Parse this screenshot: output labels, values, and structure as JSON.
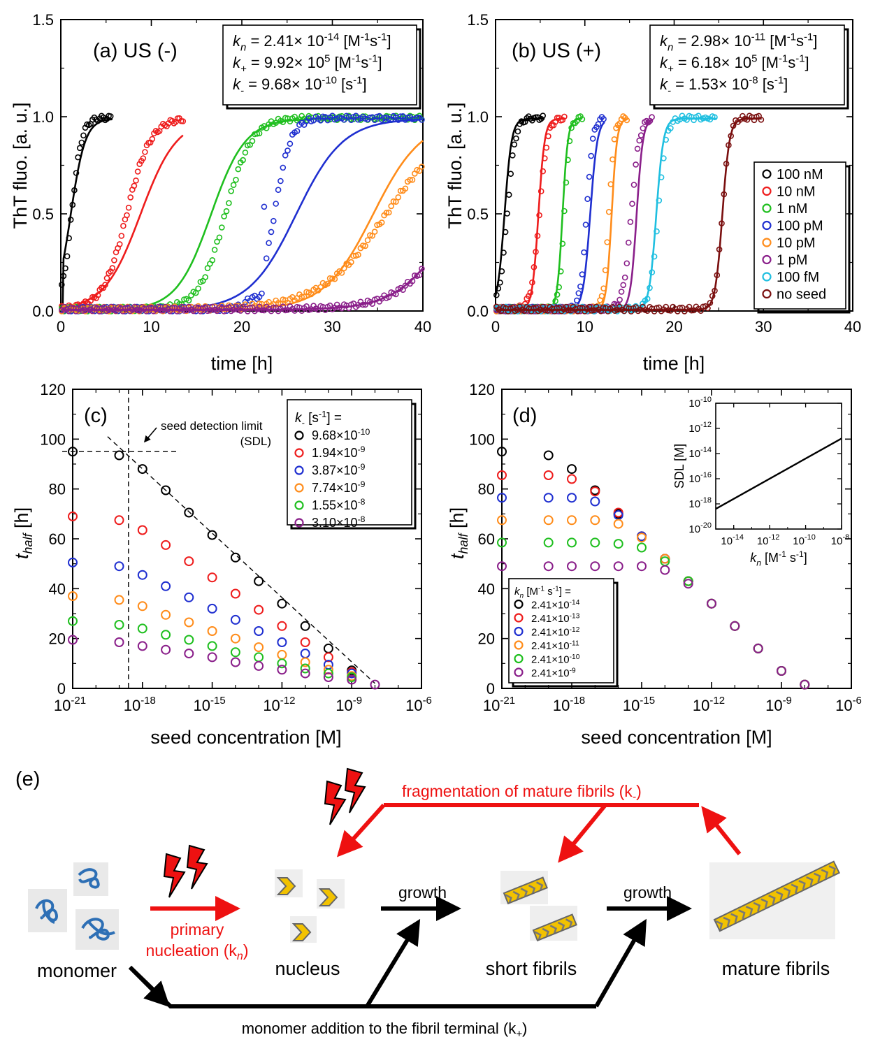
{
  "colors": {
    "c100nM": "#000000",
    "c10nM": "#ee1c1c",
    "c1nM": "#1fbf1f",
    "c100pM": "#1f2fd0",
    "c10pM": "#ff8c1a",
    "c1pM": "#8a1f8a",
    "c100fM": "#1fbfe0",
    "noseed": "#7a0f0f",
    "red": "#ee1111",
    "black": "#000000"
  },
  "chart_data": [
    {
      "panel": "(a) US (-)",
      "type": "line",
      "xlabel": "time [h]",
      "ylabel": "ThT fluo. [a. u.]",
      "xlim": [
        0,
        40
      ],
      "ylim": [
        0,
        1.5
      ],
      "xticks": [
        "0",
        "10",
        "20",
        "30",
        "40"
      ],
      "yticks": [
        "0.0",
        "0.5",
        "1.0",
        "1.5"
      ],
      "params": [
        "k_n = 2.41× 10^-14 [M^-1s^-1]",
        "k_+ = 9.92× 10^5 [M^-1s^-1]",
        "k_- = 9.68× 10^-10 [s^-1]"
      ],
      "series": [
        {
          "color": "c100nM",
          "t50_data": 1.2,
          "t50_fit": 1.1,
          "tend": 5.7,
          "lag_fit": 0.25
        },
        {
          "color": "c10nM",
          "t50_data": 7.3,
          "t50_fit": 8.8,
          "tend": 13.5
        },
        {
          "color": "c1nM",
          "t50_data": 18.2,
          "t50_fit": 16.6,
          "tend": 40
        },
        {
          "color": "c100pM",
          "t50_data": 23.6,
          "t50_fit": 26.0,
          "tend": 40,
          "jump": [
            20.4,
            22.3
          ]
        },
        {
          "color": "c10pM",
          "t50_data": 36.0,
          "t50_fit": 34.5,
          "tend": 40
        },
        {
          "color": "c1pM",
          "t50_data": 44.0,
          "t50_fit": 43.8,
          "tend": 40
        }
      ]
    },
    {
      "panel": "(b) US (+)",
      "type": "line",
      "xlabel": "time [h]",
      "ylabel": "ThT fluo. [a. u.]",
      "xlim": [
        0,
        40
      ],
      "ylim": [
        0,
        1.5
      ],
      "xticks": [
        "0",
        "10",
        "20",
        "30",
        "40"
      ],
      "yticks": [
        "0.0",
        "0.5",
        "1.0",
        "1.5"
      ],
      "params": [
        "k_n = 2.98× 10^-11 [M^-1s^-1]",
        "k_+ = 6.18× 10^5 [M^-1s^-1]",
        "k_- = 1.53× 10^-8 [s^-1]"
      ],
      "legend": [
        "100 nM",
        "10 nM",
        "1 nM",
        "100 pM",
        "10 pM",
        "1 pM",
        "100 fM",
        "no seed"
      ],
      "series": [
        {
          "name": "100 nM",
          "color": "c100nM",
          "t50_data": 1.3,
          "t50_fit": 1.0,
          "tend": 5.5
        },
        {
          "name": "10 nM",
          "color": "c10nM",
          "t50_data": 4.9,
          "t50_fit": 4.8,
          "tend": 7.8
        },
        {
          "name": "1 nM",
          "color": "c1nM",
          "t50_data": 7.7,
          "t50_fit": 7.5,
          "tend": 9.7
        },
        {
          "name": "100 pM",
          "color": "c100pM",
          "t50_data": 10.2,
          "t50_fit": 10.6,
          "tend": 12.2
        },
        {
          "name": "10 pM",
          "color": "c10pM",
          "t50_data": 12.7,
          "t50_fit": 13.0,
          "tend": 14.8
        },
        {
          "name": "1 pM",
          "color": "c1pM",
          "t50_data": 15.2,
          "t50_fit": 15.8,
          "tend": 17.6
        },
        {
          "name": "100 fM",
          "color": "c100fM",
          "t50_data": 18.2,
          "t50_fit": 18.0,
          "tend": 24.8
        },
        {
          "name": "no seed",
          "color": "noseed",
          "t50_data": 25.4,
          "t50_fit": 25.4,
          "tend": 29.8
        }
      ]
    },
    {
      "panel": "(c)",
      "type": "scatter",
      "xlabel": "seed concentration [M]",
      "ylabel_main": "t",
      "ylabel_sub": "half",
      "ylabel_unit": " [h]",
      "xscale": "log",
      "xlim_exp": [
        -21,
        -6
      ],
      "ylim": [
        0,
        120
      ],
      "xticks": [
        -21,
        -18,
        -15,
        -12,
        -9,
        -6
      ],
      "yticks": [
        "0",
        "20",
        "40",
        "60",
        "80",
        "100",
        "120"
      ],
      "legend_title": "k_- [s^-1] =",
      "annotation": [
        "seed detection limit",
        "(SDL)"
      ],
      "x_exp": [
        -21,
        -19,
        -18,
        -17,
        -16,
        -15,
        -14,
        -13,
        -12,
        -11,
        -10,
        -9,
        -8
      ],
      "series": [
        {
          "name": "9.68×10^-10",
          "color": "c100nM",
          "values": [
            95,
            93.5,
            88,
            79.5,
            70.5,
            61.5,
            52.5,
            43,
            34,
            25,
            16,
            7.2,
            null
          ]
        },
        {
          "name": "1.94×10^-9",
          "color": "c10nM",
          "values": [
            69,
            67.5,
            63.5,
            57.5,
            51,
            44.5,
            38,
            31.5,
            25,
            18.5,
            12.5,
            6.5,
            null
          ]
        },
        {
          "name": "3.87×10^-9",
          "color": "c100pM",
          "values": [
            50.5,
            49,
            45.5,
            41,
            36.5,
            32,
            27.5,
            23,
            18.5,
            14,
            9.5,
            6,
            null
          ]
        },
        {
          "name": "7.74×10^-9",
          "color": "c10pM",
          "values": [
            37,
            35.5,
            33,
            29.5,
            26.5,
            23,
            20,
            16.5,
            13.5,
            10.5,
            7.5,
            5,
            null
          ]
        },
        {
          "name": "1.55×10^-8",
          "color": "c1nM",
          "values": [
            27,
            25.5,
            24,
            21.5,
            19.5,
            17,
            14.5,
            12.5,
            10,
            8,
            6,
            4.5,
            null
          ]
        },
        {
          "name": "3.10×10^-8",
          "color": "c1pM",
          "values": [
            19.5,
            18.5,
            17,
            15.5,
            14,
            12.5,
            10.5,
            9,
            7.5,
            6,
            4.5,
            3.5,
            1.5
          ]
        }
      ]
    },
    {
      "panel": "(d)",
      "type": "scatter",
      "xlabel": "seed concentration [M]",
      "ylabel_main": "t",
      "ylabel_sub": "half",
      "ylabel_unit": " [h]",
      "xscale": "log",
      "xlim_exp": [
        -21,
        -6
      ],
      "ylim": [
        0,
        120
      ],
      "xticks": [
        -21,
        -18,
        -15,
        -12,
        -9,
        -6
      ],
      "yticks": [
        "0",
        "20",
        "40",
        "60",
        "80",
        "100",
        "120"
      ],
      "legend_title": "k_n [M^-1 s^-1] =",
      "x_exp": [
        -21,
        -19,
        -18,
        -17,
        -16,
        -15,
        -14,
        -13,
        -12,
        -11,
        -10,
        -9,
        -8
      ],
      "series": [
        {
          "name": "2.41×10^-14",
          "color": "c100nM",
          "values": [
            95,
            93.5,
            88,
            79.5,
            70,
            61,
            52,
            43,
            34,
            25,
            16,
            7,
            1.5
          ]
        },
        {
          "name": "2.41×10^-13",
          "color": "c10nM",
          "values": [
            85.5,
            85.5,
            84,
            79,
            70.5,
            61,
            52,
            43,
            34,
            25,
            16,
            7,
            1.5
          ]
        },
        {
          "name": "2.41×10^-12",
          "color": "c100pM",
          "values": [
            76.5,
            76.5,
            76.5,
            75,
            69.5,
            61,
            52,
            43,
            34,
            25,
            16,
            7,
            1.5
          ]
        },
        {
          "name": "2.41×10^-11",
          "color": "c10pM",
          "values": [
            67.5,
            67.5,
            67.5,
            67.5,
            66,
            60.5,
            52,
            43,
            34,
            25,
            16,
            7,
            1.5
          ]
        },
        {
          "name": "2.41×10^-10",
          "color": "c1nM",
          "values": [
            58.5,
            58.5,
            58.5,
            58.5,
            58,
            56.5,
            51,
            43,
            34,
            25,
            16,
            7,
            1.5
          ]
        },
        {
          "name": "2.41×10^-9",
          "color": "c1pM",
          "values": [
            49,
            49,
            49,
            49,
            49,
            49,
            47.5,
            42,
            34,
            25,
            16,
            7,
            1.5
          ]
        }
      ],
      "inset": {
        "type": "line",
        "xlabel": "k_n [M^-1 s^-1]",
        "ylabel": "SDL [M]",
        "xscale": "log",
        "yscale": "log",
        "xlim_exp": [
          -15,
          -8
        ],
        "ylim_exp": [
          -20,
          -10
        ],
        "xticks": [
          -14,
          -12,
          -10,
          -8
        ],
        "yticks": [
          -20,
          -18,
          -16,
          -14,
          -12,
          -10
        ],
        "line": [
          [
            -15,
            -18.4
          ],
          [
            -8,
            -12.8
          ]
        ]
      }
    }
  ],
  "schematic": {
    "label": "(e)",
    "fragmentation": "fragmentation of mature fibrils (k",
    "fragmentation_sub": "-",
    "primary_1": "primary",
    "primary_2": "nucleation (k",
    "primary_sub": "n",
    "growth_1": "growth",
    "growth_2": "growth",
    "monomer": "monomer",
    "nucleus": "nucleus",
    "short": "short fibrils",
    "mature": "mature fibrils",
    "addition": "monomer addition to the fibril terminal (k",
    "addition_sub": "+"
  }
}
